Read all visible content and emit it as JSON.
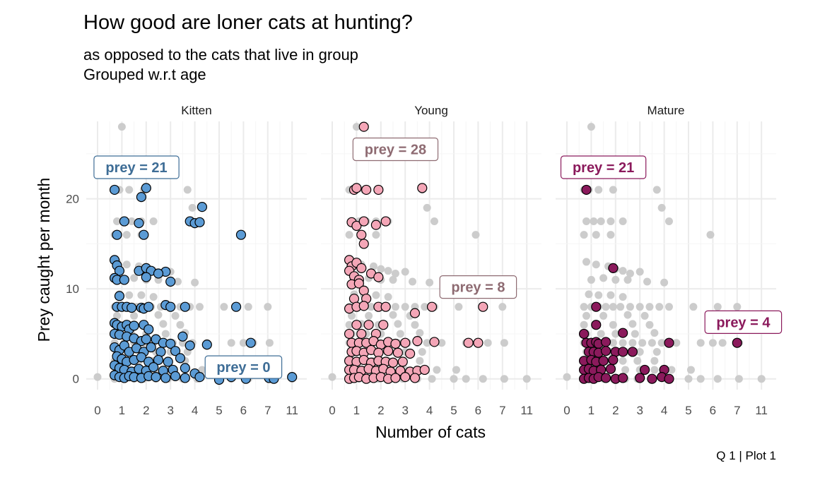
{
  "title": "How good are loner cats at hunting?",
  "subtitle_lines": [
    "as opposed to the cats that live in group",
    "Grouped w.r.t age"
  ],
  "caption": "Q 1 | Plot 1",
  "colors": {
    "Kitten": "#5b9bd5",
    "Young": "#f4a6b7",
    "Mature": "#8b1a5c",
    "background_points": "#cccccc",
    "label_Kitten": "#3e6d96",
    "label_Young": "#8e6b72",
    "label_Mature": "#8b1a5c"
  },
  "chart_data": {
    "type": "scatter",
    "xlabel": "Number of cats",
    "ylabel": "Prey caught per month",
    "xlim": [
      0,
      11
    ],
    "ylim": [
      0,
      28
    ],
    "x_ticks": [
      "0",
      "1",
      "2",
      "3",
      "4",
      "5",
      "6",
      "7",
      "11"
    ],
    "y_ticks": [
      "0",
      "10",
      "20"
    ],
    "grid": true,
    "facets": [
      {
        "name": "Kitten",
        "labels": [
          {
            "text": "prey = 21",
            "x": 1.6,
            "y": 23.5
          },
          {
            "text": "prey = 0",
            "x": 6.0,
            "y": 1.3
          }
        ],
        "points": [
          [
            0.7,
            21
          ],
          [
            2.0,
            21.2
          ],
          [
            1.8,
            20.2
          ],
          [
            4.3,
            19.1
          ],
          [
            1.1,
            17.5
          ],
          [
            1.7,
            17.3
          ],
          [
            3.8,
            17.5
          ],
          [
            4.0,
            17.3
          ],
          [
            4.2,
            17.4
          ],
          [
            0.8,
            16
          ],
          [
            1.9,
            16
          ],
          [
            5.9,
            16
          ],
          [
            0.7,
            13.2
          ],
          [
            0.8,
            12.6
          ],
          [
            0.9,
            12
          ],
          [
            1.7,
            12
          ],
          [
            2.0,
            12.3
          ],
          [
            2.2,
            12
          ],
          [
            2.8,
            11.9
          ],
          [
            2.5,
            11.7
          ],
          [
            0.7,
            11.2
          ],
          [
            0.8,
            11
          ],
          [
            1.1,
            11
          ],
          [
            2.0,
            11.3
          ],
          [
            3.0,
            10.8
          ],
          [
            0.9,
            9.2
          ],
          [
            0.8,
            8
          ],
          [
            1.0,
            8
          ],
          [
            1.2,
            8
          ],
          [
            1.4,
            7.9
          ],
          [
            1.8,
            7.9
          ],
          [
            1.9,
            7.8
          ],
          [
            2.1,
            8
          ],
          [
            2.8,
            8.2
          ],
          [
            3.0,
            8
          ],
          [
            3.6,
            8
          ],
          [
            5.7,
            8
          ],
          [
            0.7,
            6.2
          ],
          [
            0.8,
            6
          ],
          [
            1.0,
            5.8
          ],
          [
            1.2,
            6
          ],
          [
            1.3,
            5.5
          ],
          [
            1.5,
            5.9
          ],
          [
            1.9,
            6
          ],
          [
            2.1,
            5.5
          ],
          [
            0.7,
            5
          ],
          [
            0.9,
            4.9
          ],
          [
            1.2,
            4.7
          ],
          [
            1.5,
            4.5
          ],
          [
            1.8,
            4.2
          ],
          [
            2.0,
            4.4
          ],
          [
            2.4,
            4.4
          ],
          [
            2.7,
            4.0
          ],
          [
            3.0,
            3.9
          ],
          [
            3.5,
            4.7
          ],
          [
            3.8,
            3.7
          ],
          [
            4.5,
            3.8
          ],
          [
            6.3,
            4
          ],
          [
            0.7,
            3.5
          ],
          [
            0.9,
            3.2
          ],
          [
            1.1,
            3.7
          ],
          [
            1.3,
            3.0
          ],
          [
            1.6,
            3.4
          ],
          [
            1.9,
            3.0
          ],
          [
            2.2,
            3.5
          ],
          [
            2.6,
            3.0
          ],
          [
            3.2,
            3.1
          ],
          [
            0.8,
            2.5
          ],
          [
            1.0,
            2.2
          ],
          [
            1.2,
            1.9
          ],
          [
            1.5,
            2.1
          ],
          [
            1.8,
            2.4
          ],
          [
            2.1,
            1.9
          ],
          [
            2.5,
            2.1
          ],
          [
            2.9,
            1.9
          ],
          [
            3.4,
            2.3
          ],
          [
            0.7,
            1.5
          ],
          [
            0.9,
            1.2
          ],
          [
            1.1,
            1.0
          ],
          [
            1.4,
            0.8
          ],
          [
            1.7,
            1.1
          ],
          [
            2.0,
            0.9
          ],
          [
            2.3,
            1.3
          ],
          [
            2.7,
            0.9
          ],
          [
            3.1,
            1.0
          ],
          [
            3.6,
            1.2
          ],
          [
            4.0,
            0.6
          ],
          [
            0.7,
            0.4
          ],
          [
            0.9,
            0.2
          ],
          [
            1.1,
            0.1
          ],
          [
            1.3,
            0.3
          ],
          [
            1.5,
            0.2
          ],
          [
            1.8,
            0.1
          ],
          [
            2.1,
            0.3
          ],
          [
            2.4,
            0.2
          ],
          [
            2.8,
            0.1
          ],
          [
            3.2,
            0.3
          ],
          [
            3.6,
            0.1
          ],
          [
            4.2,
            0.2
          ],
          [
            5.0,
            -0.1
          ],
          [
            5.5,
            0.2
          ],
          [
            6.1,
            0.0
          ],
          [
            7.2,
            0.1
          ],
          [
            8.0,
            0.0
          ],
          [
            11,
            0.2
          ]
        ]
      },
      {
        "name": "Young",
        "labels": [
          {
            "text": "prey = 28",
            "x": 2.6,
            "y": 25.5
          },
          {
            "text": "prey = 8",
            "x": 6.0,
            "y": 10.2
          }
        ],
        "points": [
          [
            1.3,
            28
          ],
          [
            0.9,
            21
          ],
          [
            1.0,
            21.2
          ],
          [
            1.4,
            21
          ],
          [
            1.9,
            21
          ],
          [
            3.7,
            21.2
          ],
          [
            0.8,
            17.4
          ],
          [
            1.0,
            17
          ],
          [
            1.3,
            17.5
          ],
          [
            1.8,
            17.1
          ],
          [
            2.2,
            17.5
          ],
          [
            1.2,
            16
          ],
          [
            1.3,
            15
          ],
          [
            0.7,
            13.2
          ],
          [
            0.8,
            12.5
          ],
          [
            1.0,
            12.9
          ],
          [
            1.2,
            12.3
          ],
          [
            0.7,
            12
          ],
          [
            0.9,
            11.4
          ],
          [
            1.1,
            11
          ],
          [
            1.6,
            11.7
          ],
          [
            1.9,
            11.3
          ],
          [
            0.8,
            10.5
          ],
          [
            1.1,
            10.6
          ],
          [
            1.3,
            9.8
          ],
          [
            0.9,
            8.9
          ],
          [
            1.4,
            8.9
          ],
          [
            0.7,
            7.8
          ],
          [
            1.0,
            8
          ],
          [
            1.3,
            8.1
          ],
          [
            1.9,
            8
          ],
          [
            2.2,
            8
          ],
          [
            3.4,
            7.3
          ],
          [
            4.1,
            8
          ],
          [
            6.2,
            8
          ],
          [
            1.0,
            6
          ],
          [
            1.5,
            6
          ],
          [
            2.1,
            6
          ],
          [
            0.7,
            5
          ],
          [
            1.2,
            5
          ],
          [
            1.8,
            5
          ],
          [
            0.8,
            4
          ],
          [
            1.1,
            4
          ],
          [
            1.4,
            4
          ],
          [
            1.7,
            4.2
          ],
          [
            2.0,
            3.8
          ],
          [
            2.3,
            4.1
          ],
          [
            2.6,
            3.9
          ],
          [
            3.0,
            4
          ],
          [
            3.5,
            4.2
          ],
          [
            4.2,
            4.1
          ],
          [
            5.6,
            4
          ],
          [
            6.0,
            4
          ],
          [
            0.8,
            3
          ],
          [
            1.0,
            3.1
          ],
          [
            1.3,
            2.9
          ],
          [
            1.6,
            3.2
          ],
          [
            1.9,
            2.9
          ],
          [
            2.3,
            3.1
          ],
          [
            2.7,
            2.9
          ],
          [
            3.2,
            2.8
          ],
          [
            0.7,
            2
          ],
          [
            1.0,
            1.9
          ],
          [
            1.3,
            2.1
          ],
          [
            1.6,
            1.8
          ],
          [
            1.9,
            2.0
          ],
          [
            2.2,
            1.9
          ],
          [
            2.5,
            1.8
          ],
          [
            2.9,
            1.9
          ],
          [
            0.7,
            1
          ],
          [
            0.9,
            1.0
          ],
          [
            1.2,
            0.9
          ],
          [
            1.5,
            1.1
          ],
          [
            1.8,
            0.9
          ],
          [
            2.1,
            1.1
          ],
          [
            2.4,
            0.8
          ],
          [
            2.8,
            0.9
          ],
          [
            3.2,
            0.8
          ],
          [
            3.5,
            0.9
          ],
          [
            3.8,
            1.0
          ],
          [
            0.7,
            0
          ],
          [
            0.9,
            0.1
          ],
          [
            1.1,
            0.2
          ],
          [
            1.4,
            0.0
          ],
          [
            1.7,
            0.1
          ],
          [
            2.0,
            0.2
          ],
          [
            2.3,
            0.0
          ],
          [
            2.6,
            0.1
          ],
          [
            3.0,
            0.2
          ],
          [
            3.4,
            0.1
          ]
        ]
      },
      {
        "name": "Mature",
        "labels": [
          {
            "text": "prey = 21",
            "x": 1.5,
            "y": 23.5
          },
          {
            "text": "prey = 4",
            "x": 8.0,
            "y": 6.3
          }
        ],
        "points": [
          [
            0.8,
            21
          ],
          [
            1.9,
            12.3
          ],
          [
            1.2,
            8
          ],
          [
            1.2,
            6
          ],
          [
            2.3,
            5.1
          ],
          [
            0.7,
            5
          ],
          [
            0.8,
            4
          ],
          [
            1.0,
            4
          ],
          [
            1.2,
            4.1
          ],
          [
            1.3,
            3.9
          ],
          [
            1.6,
            4.1
          ],
          [
            4.2,
            4
          ],
          [
            7.0,
            4
          ],
          [
            0.9,
            3
          ],
          [
            1.1,
            3.0
          ],
          [
            1.3,
            2.9
          ],
          [
            1.6,
            3.1
          ],
          [
            2.0,
            3
          ],
          [
            2.3,
            3
          ],
          [
            2.7,
            3
          ],
          [
            0.7,
            2
          ],
          [
            1.0,
            2.1
          ],
          [
            1.2,
            1.9
          ],
          [
            1.5,
            2.0
          ],
          [
            1.9,
            2.1
          ],
          [
            0.7,
            1
          ],
          [
            0.9,
            1.1
          ],
          [
            1.1,
            0.9
          ],
          [
            1.4,
            1.0
          ],
          [
            1.8,
            1.1
          ],
          [
            3.2,
            1.0
          ],
          [
            4.0,
            1.0
          ],
          [
            0.7,
            0
          ],
          [
            0.9,
            0.1
          ],
          [
            1.1,
            0.0
          ],
          [
            1.3,
            0.2
          ],
          [
            1.6,
            0.1
          ],
          [
            2.0,
            0.0
          ],
          [
            2.3,
            0.1
          ],
          [
            3.0,
            0.1
          ],
          [
            3.5,
            0.0
          ],
          [
            3.9,
            0.2
          ],
          [
            4.2,
            0.0
          ]
        ]
      }
    ],
    "background_points": [
      [
        1.0,
        28
      ],
      [
        0.7,
        21
      ],
      [
        0.9,
        21
      ],
      [
        1.3,
        21
      ],
      [
        1.9,
        21
      ],
      [
        3.7,
        21
      ],
      [
        0.8,
        17.5
      ],
      [
        1.1,
        17.5
      ],
      [
        1.4,
        17.5
      ],
      [
        1.8,
        17.5
      ],
      [
        2.3,
        17.5
      ],
      [
        3.9,
        19
      ],
      [
        4.2,
        17.5
      ],
      [
        0.7,
        16
      ],
      [
        1.2,
        16
      ],
      [
        1.8,
        16
      ],
      [
        5.9,
        16
      ],
      [
        0.8,
        13
      ],
      [
        1.2,
        12.7
      ],
      [
        1.7,
        12.5
      ],
      [
        2.0,
        12.2
      ],
      [
        2.3,
        12
      ],
      [
        2.6,
        11.7
      ],
      [
        3.0,
        11.9
      ],
      [
        1.0,
        11
      ],
      [
        1.5,
        11.2
      ],
      [
        2.0,
        11
      ],
      [
        2.5,
        11
      ],
      [
        3.3,
        10.8
      ],
      [
        4.0,
        10.7
      ],
      [
        0.9,
        9.4
      ],
      [
        1.3,
        9.3
      ],
      [
        1.8,
        9.3
      ],
      [
        2.3,
        9.1
      ],
      [
        0.7,
        8
      ],
      [
        1.0,
        8
      ],
      [
        1.3,
        8
      ],
      [
        1.6,
        8
      ],
      [
        1.9,
        8
      ],
      [
        2.2,
        8
      ],
      [
        2.6,
        8
      ],
      [
        3.0,
        8
      ],
      [
        3.4,
        8
      ],
      [
        3.8,
        8
      ],
      [
        4.2,
        8
      ],
      [
        5.2,
        8
      ],
      [
        6.2,
        8
      ],
      [
        7.0,
        8
      ],
      [
        0.8,
        7
      ],
      [
        1.5,
        7
      ],
      [
        2.5,
        7.1
      ],
      [
        3.2,
        7.0
      ],
      [
        0.7,
        6
      ],
      [
        1.2,
        6.1
      ],
      [
        1.9,
        6
      ],
      [
        2.7,
        6.1
      ],
      [
        3.4,
        6.0
      ],
      [
        0.8,
        5
      ],
      [
        1.4,
        5
      ],
      [
        2.0,
        5
      ],
      [
        2.8,
        5
      ],
      [
        3.6,
        5.1
      ],
      [
        0.7,
        4
      ],
      [
        1.1,
        4
      ],
      [
        1.5,
        4
      ],
      [
        1.9,
        4
      ],
      [
        2.3,
        4
      ],
      [
        2.7,
        4
      ],
      [
        3.1,
        4
      ],
      [
        3.5,
        4
      ],
      [
        3.9,
        4
      ],
      [
        4.5,
        4
      ],
      [
        5.5,
        4
      ],
      [
        6.0,
        4
      ],
      [
        6.4,
        4
      ],
      [
        7.3,
        4
      ],
      [
        0.8,
        3
      ],
      [
        1.3,
        3
      ],
      [
        1.8,
        3
      ],
      [
        2.4,
        3
      ],
      [
        3.0,
        3
      ],
      [
        3.7,
        3
      ],
      [
        0.7,
        2
      ],
      [
        1.2,
        2
      ],
      [
        1.7,
        2
      ],
      [
        2.3,
        2
      ],
      [
        2.9,
        2
      ],
      [
        3.6,
        2
      ],
      [
        0.8,
        1
      ],
      [
        1.3,
        1
      ],
      [
        1.8,
        1
      ],
      [
        2.4,
        1
      ],
      [
        3.0,
        1
      ],
      [
        3.6,
        1
      ],
      [
        4.3,
        1
      ],
      [
        5.1,
        1
      ],
      [
        0.0,
        0.2
      ],
      [
        0.7,
        0
      ],
      [
        1.1,
        0
      ],
      [
        1.5,
        0
      ],
      [
        1.9,
        0
      ],
      [
        2.4,
        0
      ],
      [
        2.9,
        0
      ],
      [
        3.5,
        0
      ],
      [
        4.1,
        0
      ],
      [
        5.0,
        0
      ],
      [
        5.5,
        0
      ],
      [
        6.2,
        0
      ],
      [
        7.3,
        0
      ],
      [
        11,
        0
      ]
    ]
  }
}
